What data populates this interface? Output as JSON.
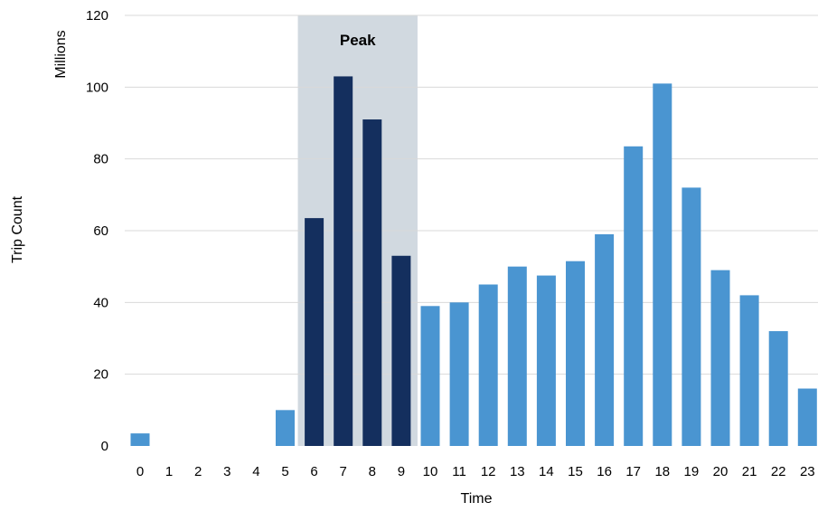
{
  "chart_data": {
    "type": "bar",
    "title": "",
    "xlabel": "Time",
    "ylabel": "Trip Count",
    "yunit": "Millions",
    "ylim": [
      0,
      120
    ],
    "yticks": [
      0,
      20,
      40,
      60,
      80,
      100,
      120
    ],
    "grid": true,
    "legend": "none",
    "categories": [
      "0",
      "1",
      "2",
      "3",
      "4",
      "5",
      "6",
      "7",
      "8",
      "9",
      "10",
      "11",
      "12",
      "13",
      "14",
      "15",
      "16",
      "17",
      "18",
      "19",
      "20",
      "21",
      "22",
      "23"
    ],
    "values": [
      3.5,
      0,
      0,
      0,
      0,
      10,
      63.5,
      103,
      91,
      53,
      39,
      40,
      45,
      50,
      47.5,
      51.5,
      59,
      83.5,
      101,
      72,
      49,
      42,
      32,
      16
    ],
    "highlight": {
      "label": "Peak",
      "categories": [
        "6",
        "7",
        "8",
        "9"
      ]
    },
    "colors": {
      "normal": "#4a95d1",
      "peak": "#142f5e",
      "band": "#d1d9e0",
      "grid": "#d9d9d9"
    }
  }
}
